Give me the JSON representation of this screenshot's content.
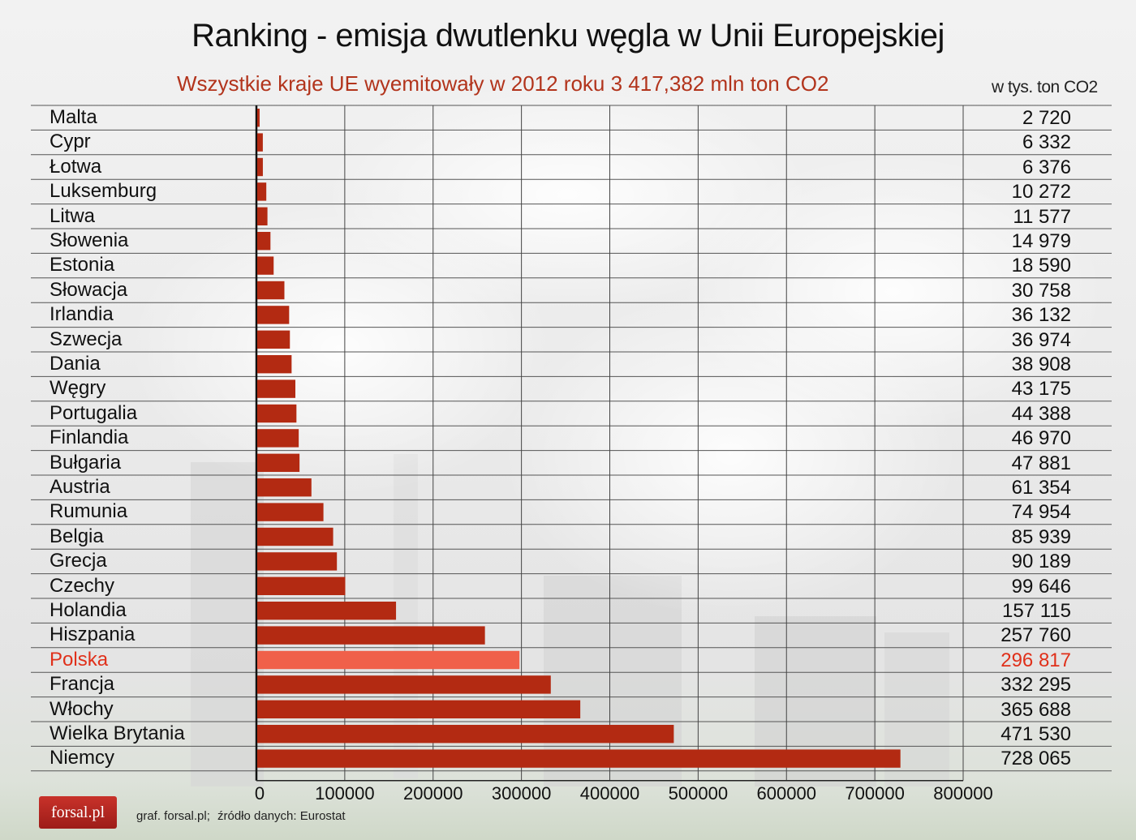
{
  "title": "Ranking - emisja dwutlenku węgla  w Unii Europejskiej",
  "subtitle": "Wszystkie kraje UE wyemitowały w 2012 roku 3 417,382 mln ton CO2",
  "unit_label": "w tys. ton CO2",
  "logo_text": "forsal.pl",
  "footer": {
    "credit": "graf. forsal.pl;",
    "source": "źródło danych: Eurostat"
  },
  "colors": {
    "bar": "#b32a12",
    "highlight_bar": "#f0604a",
    "highlight_text": "#e0301a"
  },
  "chart_data": {
    "type": "bar",
    "orientation": "horizontal",
    "categories": [
      "Malta",
      "Cypr",
      "Łotwa",
      "Luksemburg",
      "Litwa",
      "Słowenia",
      "Estonia",
      "Słowacja",
      "Irlandia",
      "Szwecja",
      "Dania",
      "Węgry",
      "Portugalia",
      "Finlandia",
      "Bułgaria",
      "Austria",
      "Rumunia",
      "Belgia",
      "Grecja",
      "Czechy",
      "Holandia",
      "Hiszpania",
      "Polska",
      "Francja",
      "Włochy",
      "Wielka Brytania",
      "Niemcy"
    ],
    "values": [
      2720,
      6332,
      6376,
      10272,
      11577,
      14979,
      18590,
      30758,
      36132,
      36974,
      38908,
      43175,
      44388,
      46970,
      47881,
      61354,
      74954,
      85939,
      90189,
      99646,
      157115,
      257760,
      296817,
      332295,
      365688,
      471530,
      728065
    ],
    "value_labels": [
      "2 720",
      "6 332",
      "6 376",
      "10 272",
      "11 577",
      "14 979",
      "18 590",
      "30 758",
      "36 132",
      "36 974",
      "38 908",
      "43 175",
      "44 388",
      "46 970",
      "47 881",
      "61 354",
      "74 954",
      "85 939",
      "90 189",
      "99 646",
      "157 115",
      "257 760",
      "296 817",
      "332 295",
      "365 688",
      "471 530",
      "728 065"
    ],
    "highlight": "Polska",
    "xlim": [
      0,
      800000
    ],
    "xticks": [
      0,
      100000,
      200000,
      300000,
      400000,
      500000,
      600000,
      700000,
      800000
    ],
    "xtick_labels": [
      "0",
      "100000",
      "200000",
      "300000",
      "400000",
      "500000",
      "600000",
      "700000",
      "800000"
    ],
    "grid": true
  }
}
